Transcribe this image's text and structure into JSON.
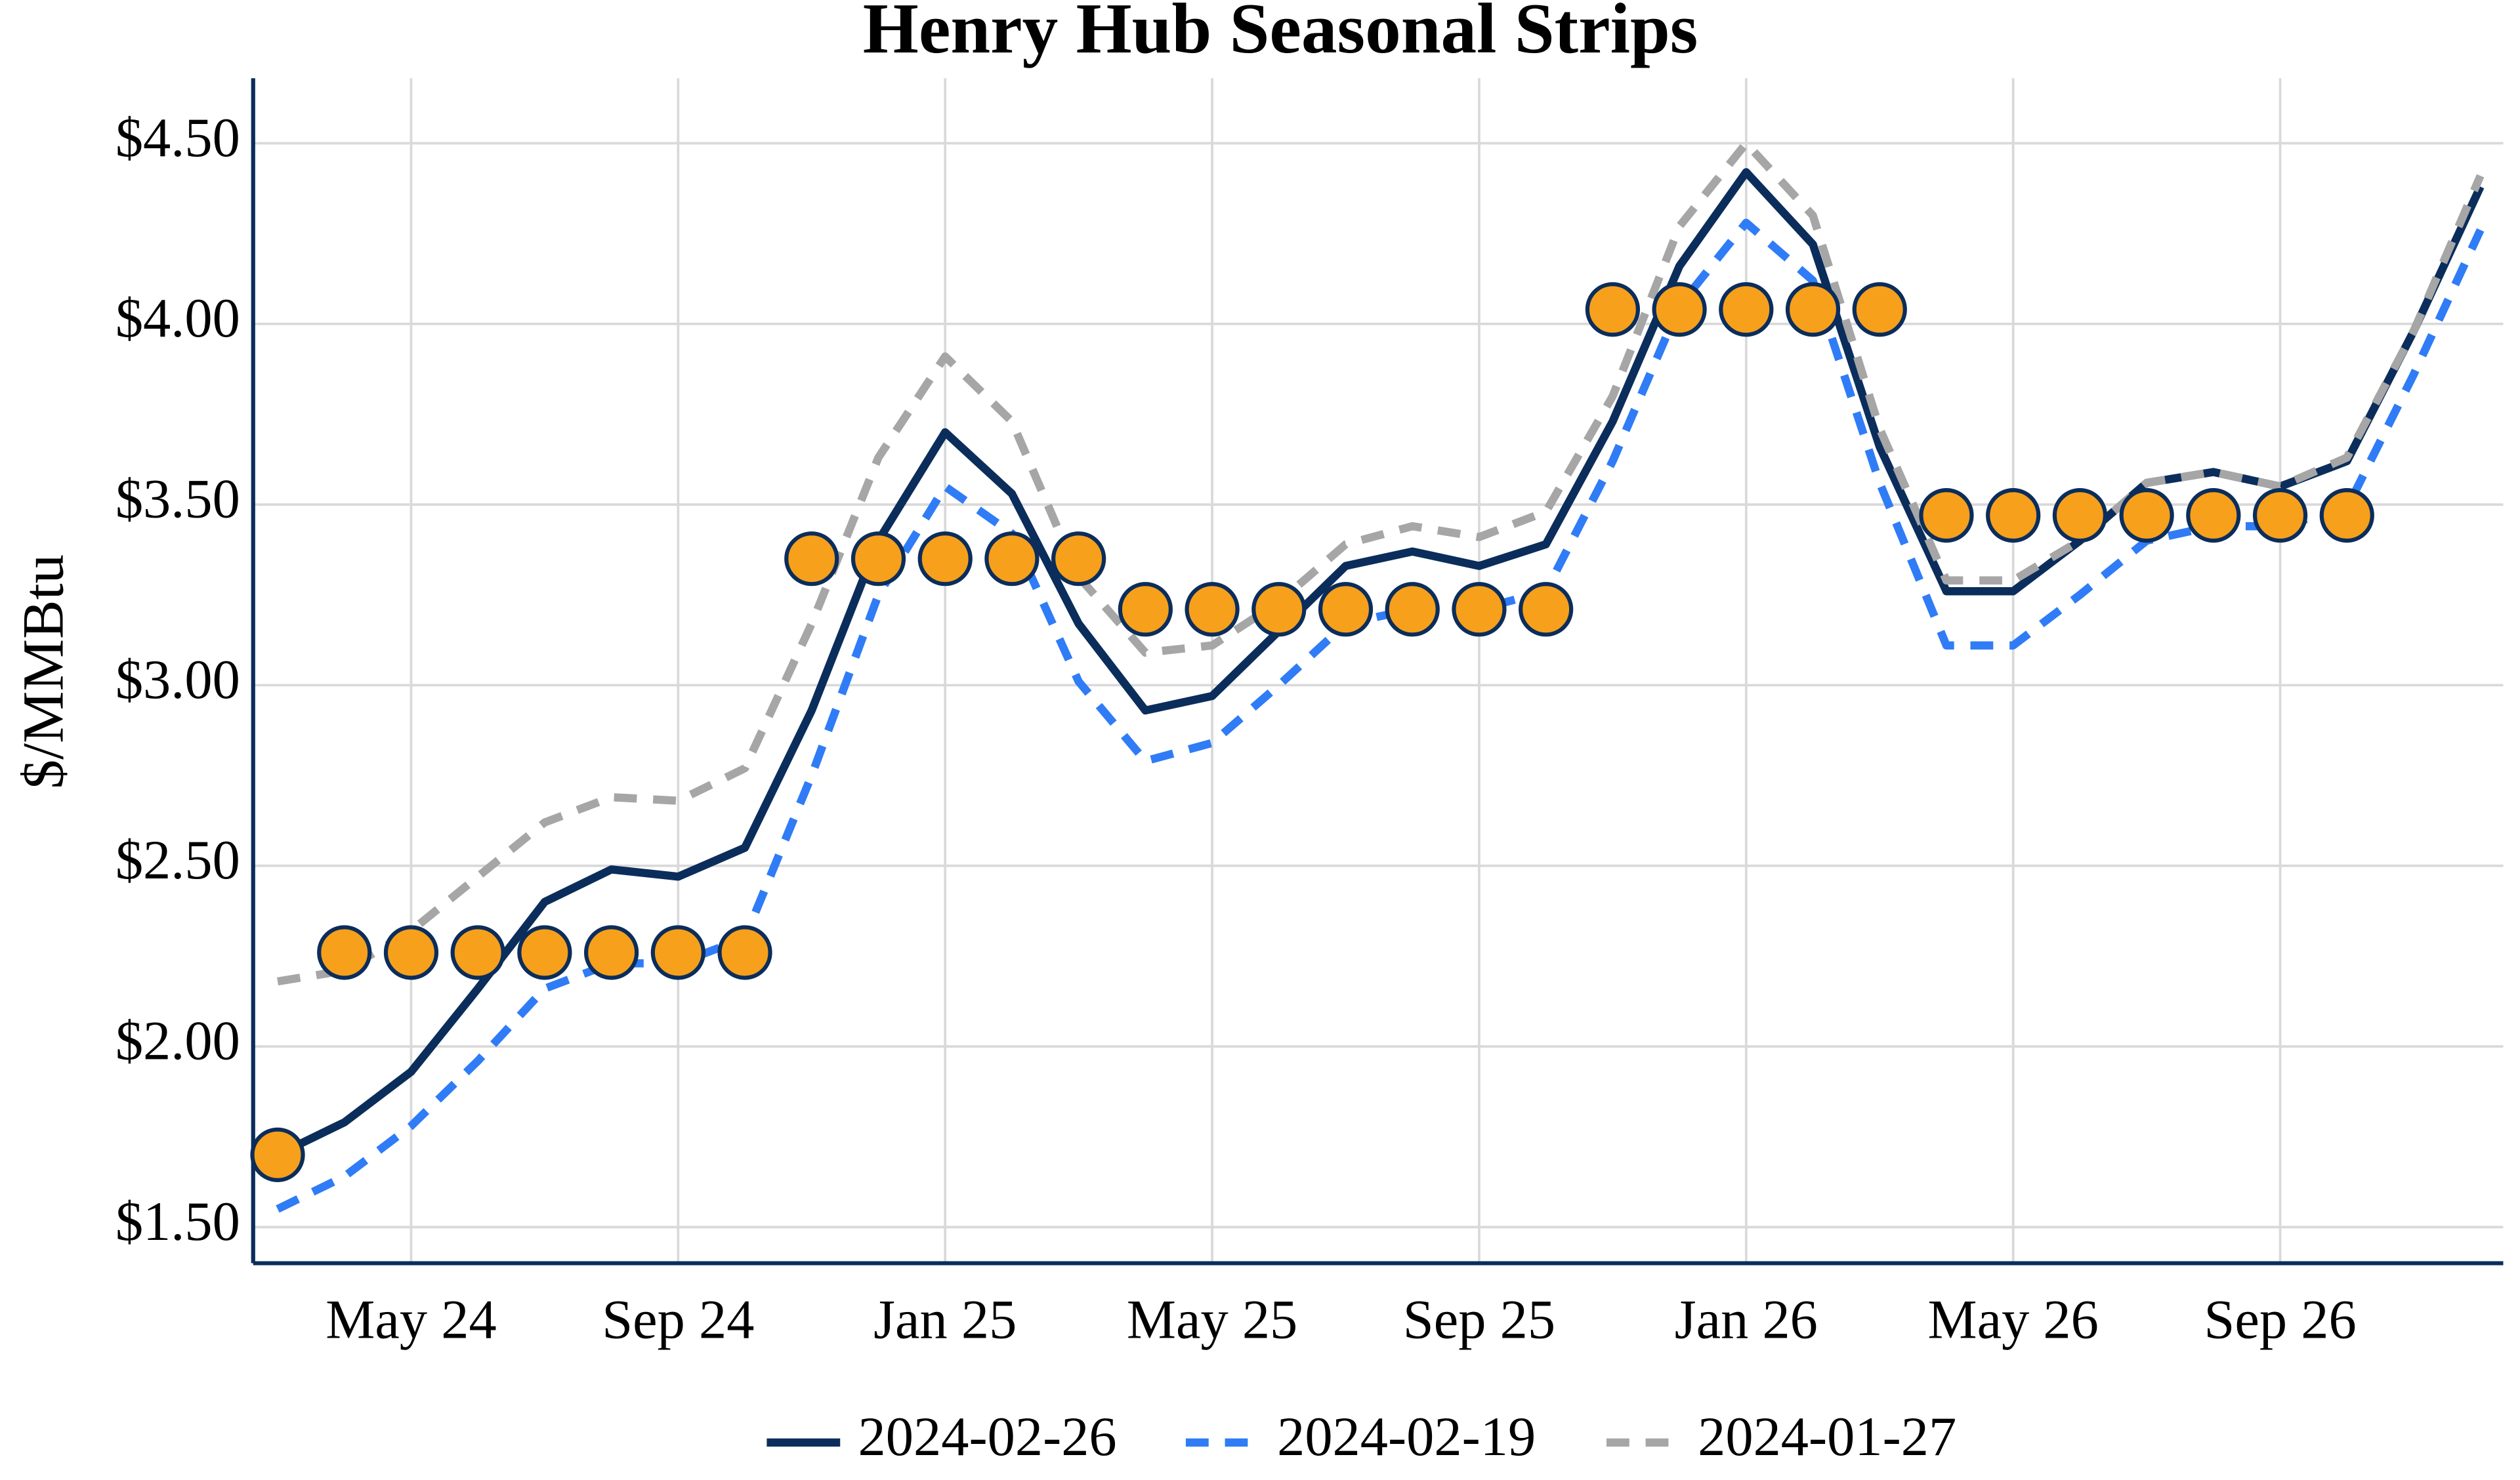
{
  "chart_data": {
    "type": "line",
    "title": "Henry Hub Seasonal Strips",
    "y_label": "$/MMBtu",
    "x": [
      "2024-03",
      "2024-04",
      "2024-05",
      "2024-06",
      "2024-07",
      "2024-08",
      "2024-09",
      "2024-10",
      "2024-11",
      "2024-12",
      "2025-01",
      "2025-02",
      "2025-03",
      "2025-04",
      "2025-05",
      "2025-06",
      "2025-07",
      "2025-08",
      "2025-09",
      "2025-10",
      "2025-11",
      "2025-12",
      "2026-01",
      "2026-02",
      "2026-03",
      "2026-04",
      "2026-05",
      "2026-06",
      "2026-07",
      "2026-08",
      "2026-09",
      "2026-10",
      "2026-11",
      "2026-12"
    ],
    "xlim": [
      "2024-03",
      "2026-12"
    ],
    "xticks": [
      {
        "value": "2024-05",
        "label": "May 24"
      },
      {
        "value": "2024-09",
        "label": "Sep 24"
      },
      {
        "value": "2025-01",
        "label": "Jan 25"
      },
      {
        "value": "2025-05",
        "label": "May 25"
      },
      {
        "value": "2025-09",
        "label": "Sep 25"
      },
      {
        "value": "2026-01",
        "label": "Jan 26"
      },
      {
        "value": "2026-05",
        "label": "May 26"
      },
      {
        "value": "2026-09",
        "label": "Sep 26"
      }
    ],
    "ylim": [
      1.4,
      4.68
    ],
    "yticks": [
      {
        "value": 1.5,
        "label": "$1.50"
      },
      {
        "value": 2,
        "label": "$2.00"
      },
      {
        "value": 2.5,
        "label": "$2.50"
      },
      {
        "value": 3,
        "label": "$3.00"
      },
      {
        "value": 3.5,
        "label": "$3.50"
      },
      {
        "value": 4,
        "label": "$4.00"
      },
      {
        "value": 4.5,
        "label": "$4.50"
      }
    ],
    "grid": true,
    "series": [
      {
        "name": "2024-02-26",
        "color": "#0b2d5b",
        "dash": false,
        "values": [
          1.7,
          1.79,
          1.93,
          2.16,
          2.4,
          2.49,
          2.47,
          2.55,
          2.93,
          3.4,
          3.7,
          3.53,
          3.17,
          2.93,
          2.97,
          3.15,
          3.33,
          3.37,
          3.33,
          3.39,
          3.73,
          4.16,
          4.42,
          4.22,
          3.66,
          3.26,
          3.26,
          3.4,
          3.56,
          3.59,
          3.55,
          3.62,
          3.98,
          4.38
        ]
      },
      {
        "name": "2024-02-19",
        "color": "#2f7cf6",
        "dash": true,
        "values": [
          1.55,
          1.64,
          1.78,
          1.96,
          2.16,
          2.23,
          2.23,
          2.3,
          2.75,
          3.25,
          3.55,
          3.42,
          3.01,
          2.79,
          2.84,
          3.0,
          3.17,
          3.21,
          3.21,
          3.26,
          3.62,
          4.05,
          4.28,
          4.12,
          3.56,
          3.11,
          3.11,
          3.25,
          3.4,
          3.44,
          3.44,
          3.49,
          3.86,
          4.26
        ]
      },
      {
        "name": "2024-01-27",
        "color": "#a6a6a6",
        "dash": true,
        "values": [
          2.18,
          2.21,
          2.32,
          2.47,
          2.62,
          2.69,
          2.68,
          2.77,
          3.17,
          3.63,
          3.91,
          3.73,
          3.3,
          3.09,
          3.11,
          3.23,
          3.39,
          3.44,
          3.41,
          3.48,
          3.8,
          4.27,
          4.5,
          4.3,
          3.71,
          3.29,
          3.29,
          3.4,
          3.56,
          3.59,
          3.55,
          3.63,
          3.98,
          4.41
        ]
      },
      {
        "color": "#f7a01c",
        "mode": "markers",
        "values": [
          1.7,
          2.26,
          2.26,
          2.26,
          2.26,
          2.26,
          2.26,
          2.26,
          3.35,
          3.35,
          3.35,
          3.35,
          3.35,
          3.21,
          3.21,
          3.21,
          3.21,
          3.21,
          3.21,
          3.21,
          4.04,
          4.04,
          4.04,
          4.04,
          4.04,
          3.47,
          3.47,
          3.47,
          3.47,
          3.47,
          3.47,
          3.47,
          null,
          null
        ]
      }
    ]
  }
}
